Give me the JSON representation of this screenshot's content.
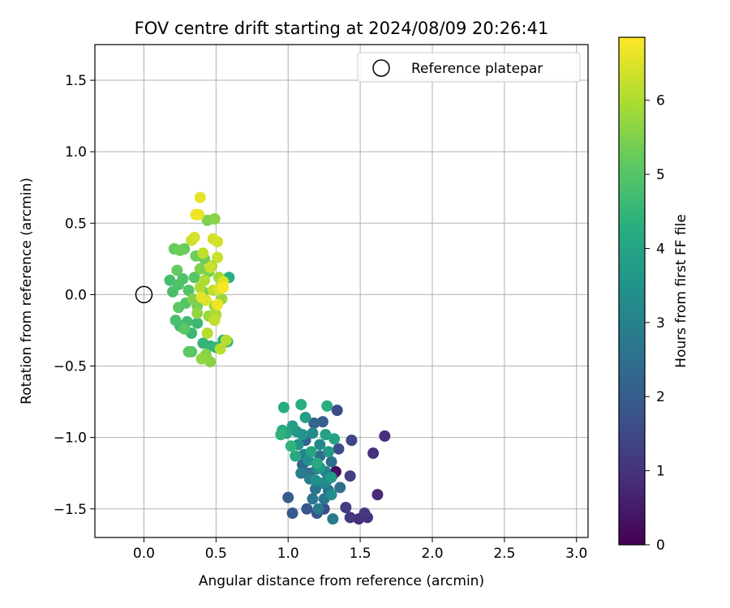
{
  "chart_data": {
    "type": "scatter",
    "title": "FOV centre drift starting at 2024/08/09 20:26:41",
    "xlabel": "Angular distance from reference (arcmin)",
    "ylabel": "Rotation from reference (arcmin)",
    "xlim": [
      -0.34,
      3.08
    ],
    "ylim": [
      -1.7,
      1.75
    ],
    "xticks": [
      "0.0",
      "0.5",
      "1.0",
      "1.5",
      "2.0",
      "2.5",
      "3.0"
    ],
    "xtick_values": [
      0.0,
      0.5,
      1.0,
      1.5,
      2.0,
      2.5,
      3.0
    ],
    "yticks": [
      "−1.5",
      "−1.0",
      "−0.5",
      "0.0",
      "0.5",
      "1.0",
      "1.5"
    ],
    "ytick_values": [
      -1.5,
      -1.0,
      -0.5,
      0.0,
      0.5,
      1.0,
      1.5
    ],
    "grid": true,
    "legend": {
      "placement": "top-right",
      "label": "Reference platepar"
    },
    "reference_point": {
      "x": 0.0,
      "y": 0.0
    },
    "colorbar": {
      "label": "Hours from first FF file",
      "colormap": "viridis",
      "range": [
        0,
        6.85
      ],
      "ticks": [
        "0",
        "1",
        "2",
        "3",
        "4",
        "5",
        "6"
      ],
      "tick_values": [
        0,
        1,
        2,
        3,
        4,
        5,
        6
      ]
    },
    "points": [
      {
        "x": 1.33,
        "y": -1.24,
        "h": 0.2
      },
      {
        "x": 1.31,
        "y": -1.26,
        "h": 0.3
      },
      {
        "x": 1.62,
        "y": -1.4,
        "h": 0.8
      },
      {
        "x": 1.67,
        "y": -0.99,
        "h": 0.9
      },
      {
        "x": 1.59,
        "y": -1.11,
        "h": 0.9
      },
      {
        "x": 1.49,
        "y": -1.57,
        "h": 0.9
      },
      {
        "x": 1.55,
        "y": -1.56,
        "h": 1.0
      },
      {
        "x": 1.53,
        "y": -1.53,
        "h": 1.1
      },
      {
        "x": 1.43,
        "y": -1.56,
        "h": 1.1
      },
      {
        "x": 1.4,
        "y": -1.49,
        "h": 1.2
      },
      {
        "x": 1.43,
        "y": -1.27,
        "h": 1.3
      },
      {
        "x": 1.44,
        "y": -1.02,
        "h": 1.4
      },
      {
        "x": 1.34,
        "y": -0.81,
        "h": 1.5
      },
      {
        "x": 1.35,
        "y": -1.08,
        "h": 1.6
      },
      {
        "x": 1.25,
        "y": -1.5,
        "h": 1.6
      },
      {
        "x": 1.2,
        "y": -1.53,
        "h": 1.7
      },
      {
        "x": 1.13,
        "y": -1.5,
        "h": 1.8
      },
      {
        "x": 1.03,
        "y": -1.53,
        "h": 1.9
      },
      {
        "x": 1.0,
        "y": -1.42,
        "h": 2.0
      },
      {
        "x": 1.24,
        "y": -0.89,
        "h": 2.1
      },
      {
        "x": 1.18,
        "y": -0.9,
        "h": 2.2
      },
      {
        "x": 1.12,
        "y": -1.02,
        "h": 2.2
      },
      {
        "x": 1.1,
        "y": -1.19,
        "h": 2.3
      },
      {
        "x": 1.15,
        "y": -1.25,
        "h": 2.4
      },
      {
        "x": 1.22,
        "y": -1.13,
        "h": 2.4
      },
      {
        "x": 1.3,
        "y": -1.17,
        "h": 2.5
      },
      {
        "x": 1.36,
        "y": -1.35,
        "h": 2.5
      },
      {
        "x": 1.28,
        "y": -1.37,
        "h": 2.6
      },
      {
        "x": 1.19,
        "y": -1.36,
        "h": 2.6
      },
      {
        "x": 1.17,
        "y": -1.43,
        "h": 2.7
      },
      {
        "x": 1.25,
        "y": -1.43,
        "h": 2.7
      },
      {
        "x": 1.31,
        "y": -1.57,
        "h": 2.8
      },
      {
        "x": 1.21,
        "y": -1.5,
        "h": 2.8
      },
      {
        "x": 1.09,
        "y": -1.25,
        "h": 2.9
      },
      {
        "x": 1.15,
        "y": -1.29,
        "h": 2.9
      },
      {
        "x": 1.2,
        "y": -1.22,
        "h": 3.0
      },
      {
        "x": 1.26,
        "y": -1.24,
        "h": 3.0
      },
      {
        "x": 1.24,
        "y": -1.32,
        "h": 3.1
      },
      {
        "x": 1.11,
        "y": -1.12,
        "h": 3.1
      },
      {
        "x": 1.17,
        "y": -0.97,
        "h": 3.2
      },
      {
        "x": 1.22,
        "y": -1.05,
        "h": 3.2
      },
      {
        "x": 1.27,
        "y": -1.3,
        "h": 3.3
      },
      {
        "x": 1.3,
        "y": -1.4,
        "h": 3.3
      },
      {
        "x": 1.19,
        "y": -1.3,
        "h": 3.4
      },
      {
        "x": 1.14,
        "y": -1.16,
        "h": 3.4
      },
      {
        "x": 1.07,
        "y": -1.05,
        "h": 3.5
      },
      {
        "x": 1.1,
        "y": -0.98,
        "h": 3.5
      },
      {
        "x": 1.06,
        "y": -0.96,
        "h": 3.6
      },
      {
        "x": 1.22,
        "y": -1.21,
        "h": 3.6
      },
      {
        "x": 1.28,
        "y": -1.1,
        "h": 3.7
      },
      {
        "x": 1.3,
        "y": -1.28,
        "h": 3.7
      },
      {
        "x": 1.03,
        "y": -0.92,
        "h": 3.8
      },
      {
        "x": 1.12,
        "y": -0.86,
        "h": 3.8
      },
      {
        "x": 1.26,
        "y": -0.98,
        "h": 3.9
      },
      {
        "x": 1.32,
        "y": -1.01,
        "h": 3.9
      },
      {
        "x": 0.99,
        "y": -0.97,
        "h": 4.0
      },
      {
        "x": 1.16,
        "y": -1.1,
        "h": 4.0
      },
      {
        "x": 1.05,
        "y": -1.13,
        "h": 4.1
      },
      {
        "x": 1.2,
        "y": -1.18,
        "h": 4.1
      },
      {
        "x": 0.97,
        "y": -0.79,
        "h": 4.2
      },
      {
        "x": 0.96,
        "y": -0.95,
        "h": 4.2
      },
      {
        "x": 1.09,
        "y": -0.77,
        "h": 4.3
      },
      {
        "x": 1.27,
        "y": -0.78,
        "h": 4.3
      },
      {
        "x": 1.02,
        "y": -1.06,
        "h": 4.4
      },
      {
        "x": 0.95,
        "y": -0.98,
        "h": 4.4
      },
      {
        "x": 0.59,
        "y": 0.12,
        "h": 4.3
      },
      {
        "x": 0.55,
        "y": -0.32,
        "h": 4.3
      },
      {
        "x": 0.58,
        "y": -0.33,
        "h": 4.4
      },
      {
        "x": 0.5,
        "y": -0.37,
        "h": 4.4
      },
      {
        "x": 0.46,
        "y": -0.36,
        "h": 4.5
      },
      {
        "x": 0.41,
        "y": -0.34,
        "h": 4.5
      },
      {
        "x": 0.37,
        "y": -0.2,
        "h": 4.6
      },
      {
        "x": 0.33,
        "y": -0.27,
        "h": 4.6
      },
      {
        "x": 0.3,
        "y": -0.19,
        "h": 4.7
      },
      {
        "x": 0.25,
        "y": -0.22,
        "h": 4.7
      },
      {
        "x": 0.22,
        "y": -0.18,
        "h": 4.8
      },
      {
        "x": 0.18,
        "y": 0.1,
        "h": 4.8
      },
      {
        "x": 0.2,
        "y": 0.02,
        "h": 4.8
      },
      {
        "x": 0.24,
        "y": 0.07,
        "h": 4.9
      },
      {
        "x": 0.27,
        "y": 0.11,
        "h": 4.9
      },
      {
        "x": 0.31,
        "y": 0.03,
        "h": 4.9
      },
      {
        "x": 0.35,
        "y": 0.12,
        "h": 5.0
      },
      {
        "x": 0.29,
        "y": -0.06,
        "h": 5.0
      },
      {
        "x": 0.33,
        "y": -0.4,
        "h": 5.0
      },
      {
        "x": 0.31,
        "y": -0.4,
        "h": 5.1
      },
      {
        "x": 0.28,
        "y": -0.24,
        "h": 5.1
      },
      {
        "x": 0.24,
        "y": -0.09,
        "h": 5.1
      },
      {
        "x": 0.23,
        "y": 0.17,
        "h": 5.2
      },
      {
        "x": 0.28,
        "y": 0.32,
        "h": 5.2
      },
      {
        "x": 0.21,
        "y": 0.32,
        "h": 5.2
      },
      {
        "x": 0.25,
        "y": 0.31,
        "h": 5.3
      },
      {
        "x": 0.36,
        "y": 0.27,
        "h": 5.3
      },
      {
        "x": 0.42,
        "y": 0.25,
        "h": 5.3
      },
      {
        "x": 0.45,
        "y": 0.16,
        "h": 5.4
      },
      {
        "x": 0.41,
        "y": 0.02,
        "h": 5.4
      },
      {
        "x": 0.37,
        "y": -0.08,
        "h": 5.4
      },
      {
        "x": 0.34,
        "y": -0.03,
        "h": 5.5
      },
      {
        "x": 0.39,
        "y": 0.18,
        "h": 5.5
      },
      {
        "x": 0.44,
        "y": 0.52,
        "h": 5.5
      },
      {
        "x": 0.49,
        "y": 0.53,
        "h": 5.6
      },
      {
        "x": 0.46,
        "y": -0.47,
        "h": 5.6
      },
      {
        "x": 0.43,
        "y": -0.42,
        "h": 5.6
      },
      {
        "x": 0.4,
        "y": -0.45,
        "h": 5.7
      },
      {
        "x": 0.37,
        "y": -0.13,
        "h": 5.7
      },
      {
        "x": 0.45,
        "y": -0.15,
        "h": 5.8
      },
      {
        "x": 0.49,
        "y": -0.08,
        "h": 5.8
      },
      {
        "x": 0.54,
        "y": -0.03,
        "h": 5.8
      },
      {
        "x": 0.52,
        "y": 0.12,
        "h": 5.9
      },
      {
        "x": 0.47,
        "y": 0.2,
        "h": 5.9
      },
      {
        "x": 0.42,
        "y": 0.1,
        "h": 6.0
      },
      {
        "x": 0.39,
        "y": 0.05,
        "h": 6.0
      },
      {
        "x": 0.5,
        "y": -0.14,
        "h": 6.0
      },
      {
        "x": 0.53,
        "y": -0.38,
        "h": 6.1
      },
      {
        "x": 0.57,
        "y": -0.32,
        "h": 6.1
      },
      {
        "x": 0.44,
        "y": -0.27,
        "h": 6.1
      },
      {
        "x": 0.49,
        "y": -0.18,
        "h": 6.2
      },
      {
        "x": 0.48,
        "y": 0.03,
        "h": 6.2
      },
      {
        "x": 0.41,
        "y": 0.29,
        "h": 6.2
      },
      {
        "x": 0.51,
        "y": 0.26,
        "h": 6.3
      },
      {
        "x": 0.46,
        "y": 0.19,
        "h": 6.3
      },
      {
        "x": 0.33,
        "y": 0.38,
        "h": 6.3
      },
      {
        "x": 0.35,
        "y": 0.4,
        "h": 6.4
      },
      {
        "x": 0.48,
        "y": 0.39,
        "h": 6.4
      },
      {
        "x": 0.51,
        "y": 0.37,
        "h": 6.4
      },
      {
        "x": 0.55,
        "y": 0.09,
        "h": 6.5
      },
      {
        "x": 0.52,
        "y": 0.04,
        "h": 6.5
      },
      {
        "x": 0.43,
        "y": -0.04,
        "h": 6.5
      },
      {
        "x": 0.4,
        "y": -0.02,
        "h": 6.6
      },
      {
        "x": 0.38,
        "y": 0.56,
        "h": 6.6
      },
      {
        "x": 0.39,
        "y": 0.68,
        "h": 6.6
      },
      {
        "x": 0.36,
        "y": 0.56,
        "h": 6.7
      },
      {
        "x": 0.51,
        "y": -0.07,
        "h": 6.7
      },
      {
        "x": 0.55,
        "y": 0.05,
        "h": 6.8
      }
    ]
  }
}
